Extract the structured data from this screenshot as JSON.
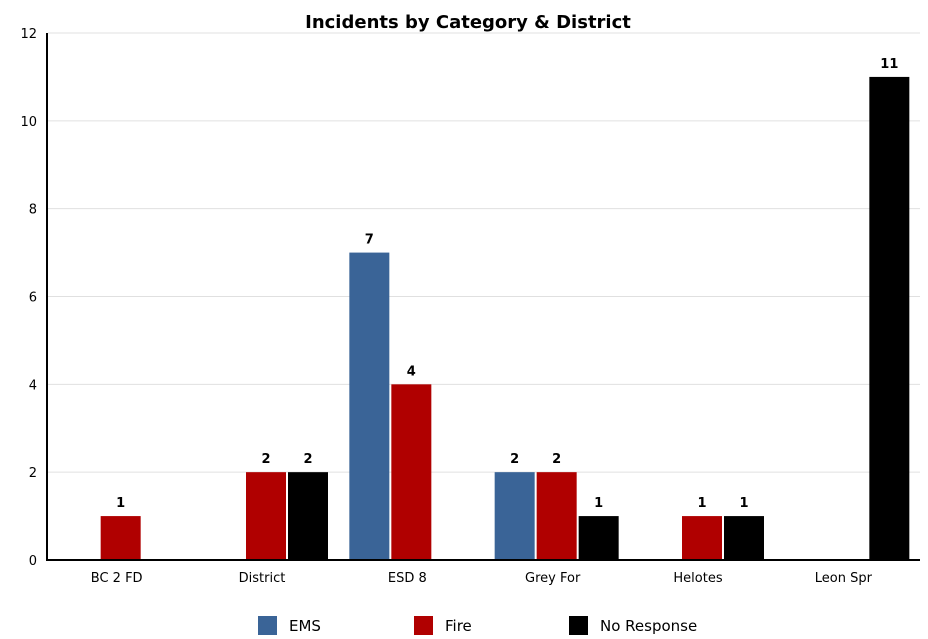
{
  "chart_data": {
    "type": "bar",
    "title": "Incidents by Category & District",
    "categories": [
      "BC 2 FD",
      "District",
      "ESD 8",
      "Grey For",
      "Helotes",
      "Leon Spr"
    ],
    "series": [
      {
        "name": "EMS",
        "color": "#3a6497",
        "values": [
          0,
          0,
          7,
          2,
          0,
          0
        ]
      },
      {
        "name": "Fire",
        "color": "#b00000",
        "values": [
          1,
          2,
          4,
          2,
          1,
          0
        ]
      },
      {
        "name": "No Response",
        "color": "#000000",
        "values": [
          0,
          2,
          0,
          1,
          1,
          11
        ]
      }
    ],
    "ylim": [
      0,
      12
    ],
    "yticks": [
      0,
      2,
      4,
      6,
      8,
      10,
      12
    ],
    "grid": true,
    "legend": "bottom"
  }
}
